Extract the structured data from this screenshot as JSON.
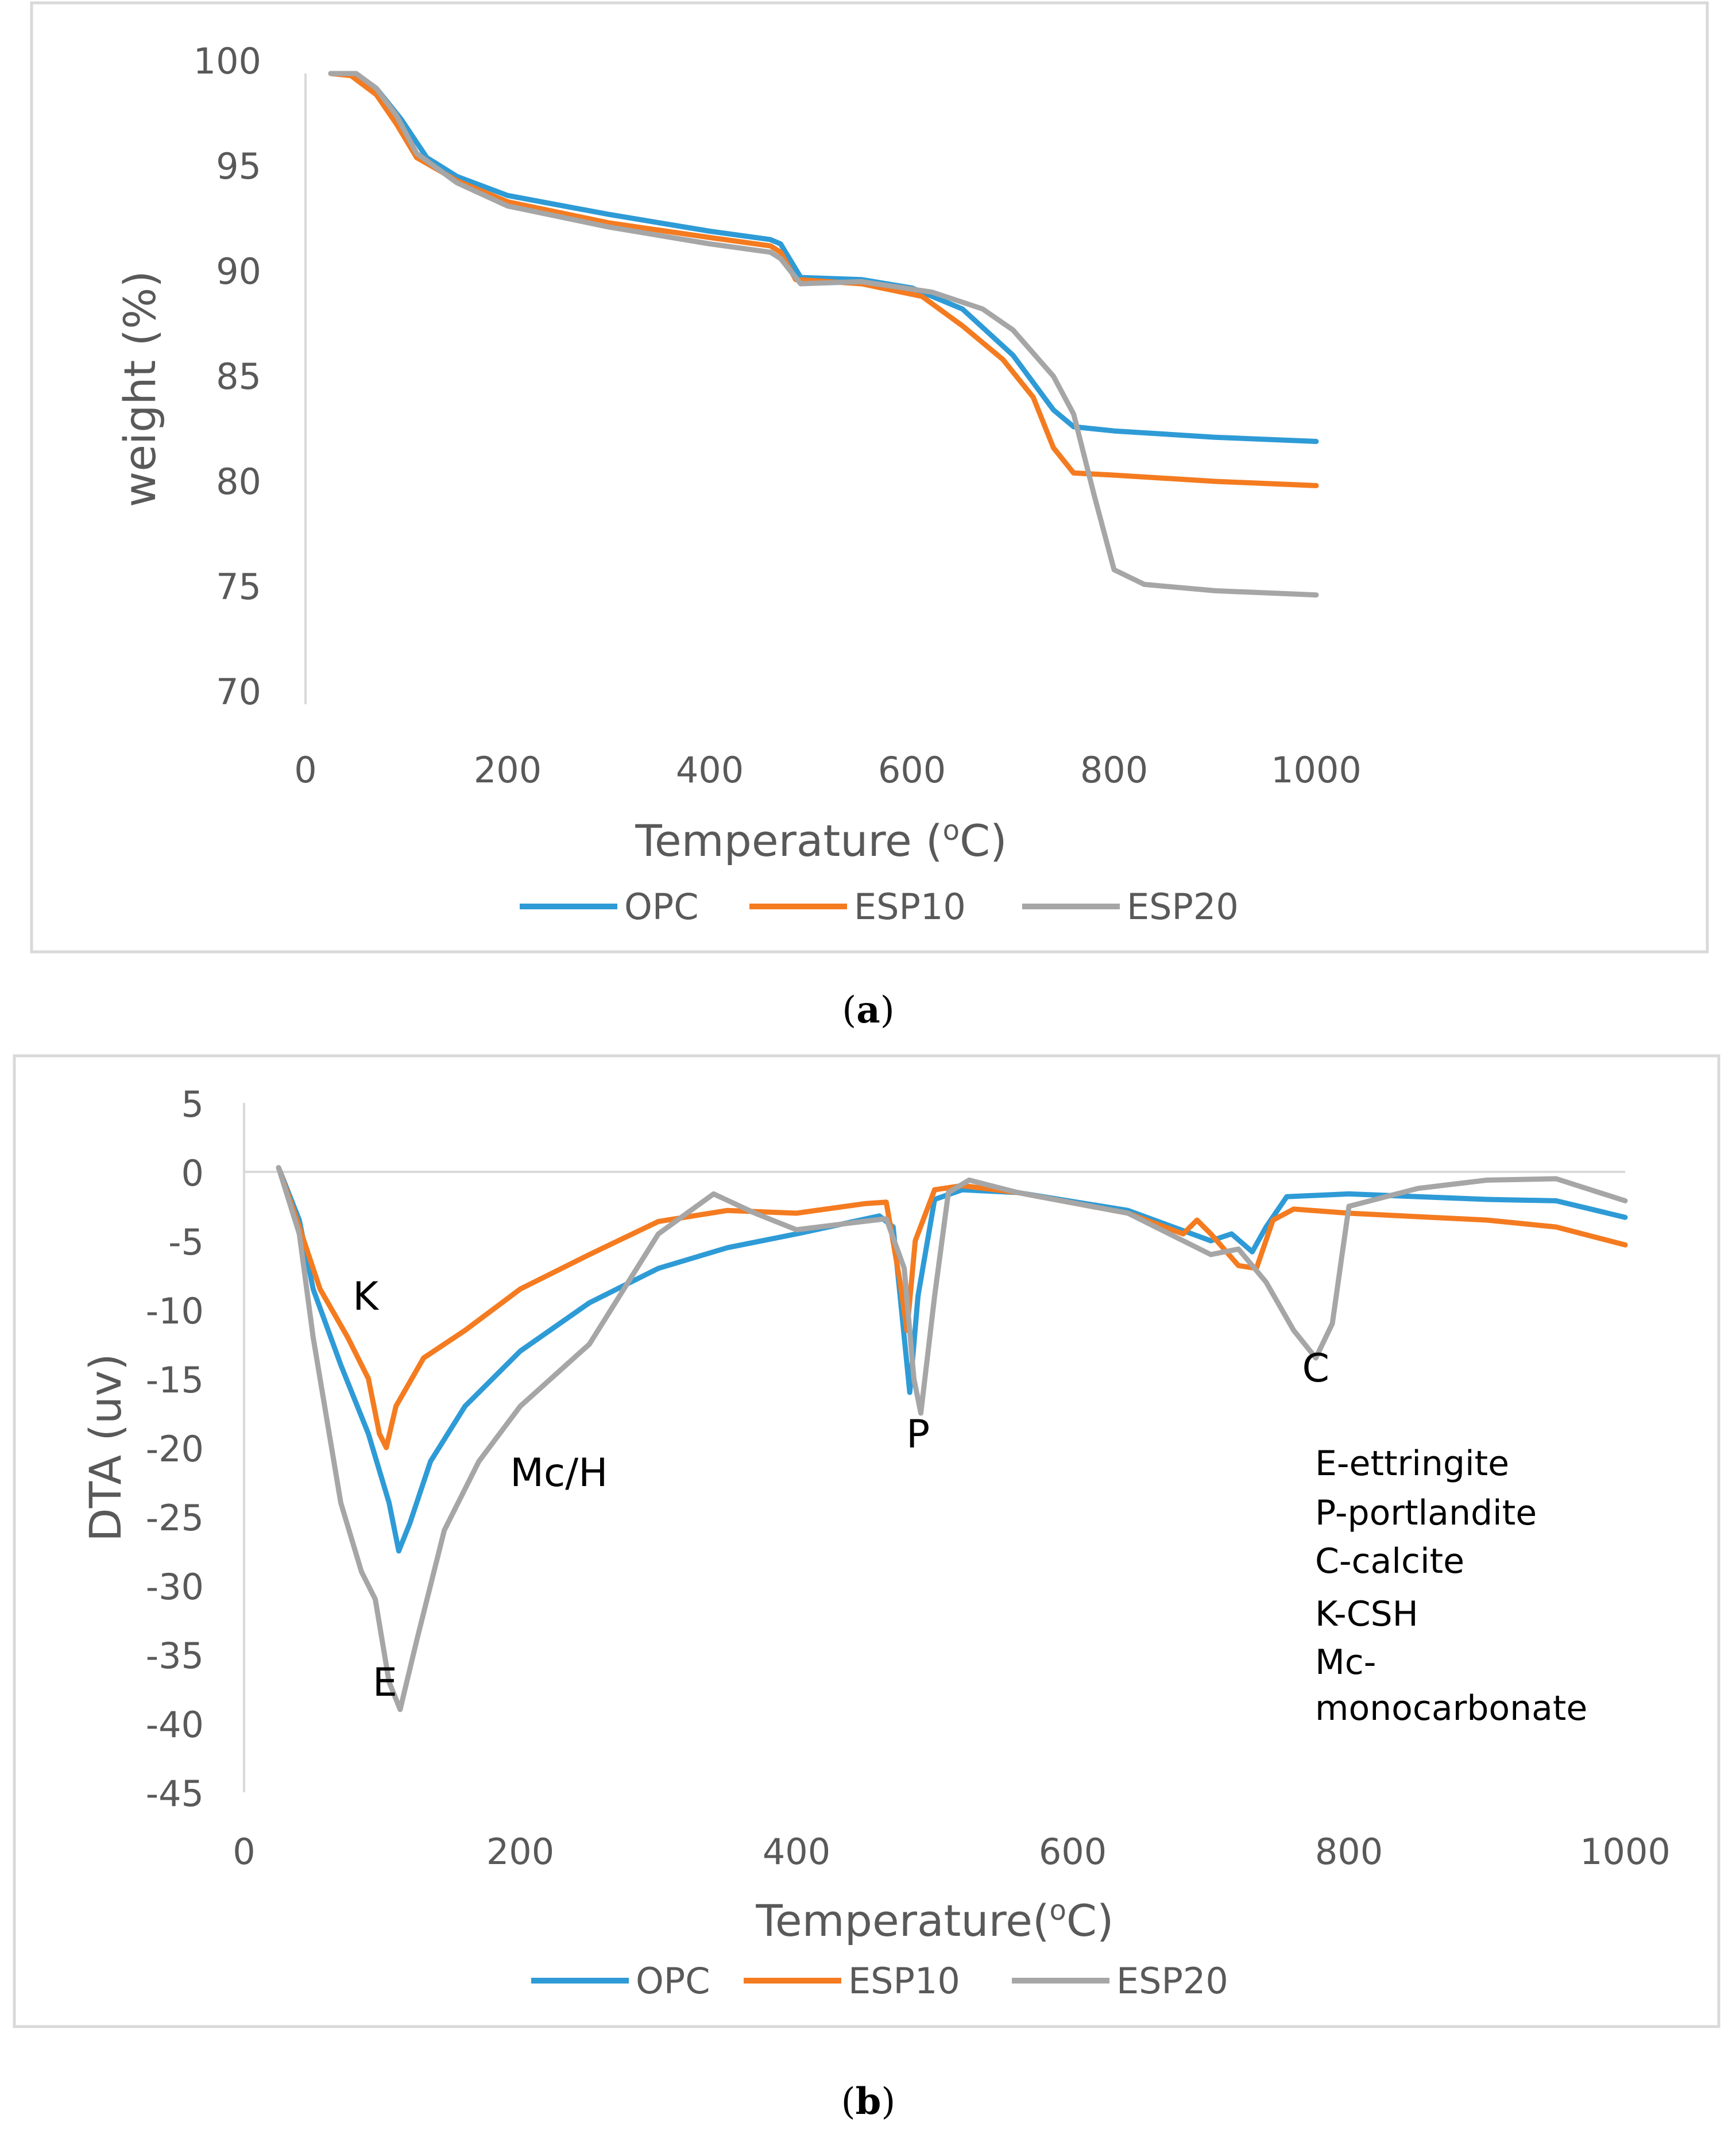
{
  "colors": {
    "OPC": "#2e9bd6",
    "ESP10": "#f47b20",
    "ESP20": "#a6a6a6",
    "axis": "#d9d9d9",
    "text": "#595959"
  },
  "chart_data": [
    {
      "id": "a",
      "type": "line",
      "caption_open": "(",
      "caption_letter": "a",
      "caption_close": ")",
      "xlabel_main": "Temperature (",
      "xlabel_sup": "o",
      "xlabel_end": "C)",
      "ylabel": "weight (%)",
      "xlim": [
        0,
        1000
      ],
      "ylim": [
        70,
        100
      ],
      "xticks": [
        "0",
        "200",
        "400",
        "600",
        "800",
        "1000"
      ],
      "yticks": [
        "70",
        "75",
        "80",
        "85",
        "90",
        "95",
        "100"
      ],
      "legend": [
        "OPC",
        "ESP10",
        "ESP20"
      ],
      "series": [
        {
          "name": "OPC",
          "points": [
            [
              25,
              100
            ],
            [
              50,
              100
            ],
            [
              70,
              99.3
            ],
            [
              95,
              97.8
            ],
            [
              120,
              96.0
            ],
            [
              150,
              95.1
            ],
            [
              200,
              94.2
            ],
            [
              300,
              93.3
            ],
            [
              400,
              92.5
            ],
            [
              460,
              92.1
            ],
            [
              470,
              91.9
            ],
            [
              490,
              90.3
            ],
            [
              550,
              90.2
            ],
            [
              600,
              89.8
            ],
            [
              650,
              88.8
            ],
            [
              700,
              86.6
            ],
            [
              740,
              84.0
            ],
            [
              760,
              83.2
            ],
            [
              800,
              83.0
            ],
            [
              900,
              82.7
            ],
            [
              1000,
              82.5
            ]
          ]
        },
        {
          "name": "ESP10",
          "points": [
            [
              25,
              100
            ],
            [
              45,
              99.9
            ],
            [
              70,
              99.0
            ],
            [
              90,
              97.6
            ],
            [
              110,
              96.0
            ],
            [
              150,
              94.9
            ],
            [
              200,
              93.9
            ],
            [
              300,
              92.9
            ],
            [
              400,
              92.2
            ],
            [
              460,
              91.8
            ],
            [
              470,
              91.5
            ],
            [
              485,
              90.2
            ],
            [
              550,
              90.0
            ],
            [
              610,
              89.4
            ],
            [
              650,
              88.0
            ],
            [
              690,
              86.4
            ],
            [
              720,
              84.6
            ],
            [
              740,
              82.2
            ],
            [
              760,
              81.0
            ],
            [
              800,
              80.9
            ],
            [
              900,
              80.6
            ],
            [
              1000,
              80.4
            ]
          ]
        },
        {
          "name": "ESP20",
          "points": [
            [
              25,
              100
            ],
            [
              50,
              100
            ],
            [
              70,
              99.3
            ],
            [
              90,
              98.0
            ],
            [
              110,
              96.2
            ],
            [
              150,
              94.8
            ],
            [
              200,
              93.7
            ],
            [
              300,
              92.7
            ],
            [
              400,
              91.9
            ],
            [
              460,
              91.5
            ],
            [
              470,
              91.2
            ],
            [
              490,
              90.0
            ],
            [
              550,
              90.1
            ],
            [
              620,
              89.6
            ],
            [
              670,
              88.8
            ],
            [
              700,
              87.8
            ],
            [
              740,
              85.6
            ],
            [
              760,
              83.8
            ],
            [
              780,
              80.0
            ],
            [
              800,
              76.4
            ],
            [
              830,
              75.7
            ],
            [
              900,
              75.4
            ],
            [
              1000,
              75.2
            ]
          ]
        }
      ]
    },
    {
      "id": "b",
      "type": "line",
      "caption_open": "(",
      "caption_letter": "b",
      "caption_close": ")",
      "xlabel_main": "Temperature(",
      "xlabel_sup": "o",
      "xlabel_end": "C)",
      "ylabel": "DTA (uv)",
      "xlim": [
        0,
        1000
      ],
      "ylim": [
        -45,
        5
      ],
      "xticks": [
        "0",
        "200",
        "400",
        "600",
        "800",
        "1000"
      ],
      "yticks": [
        "-45",
        "-40",
        "-35",
        "-30",
        "-25",
        "-20",
        "-15",
        "-10",
        "-5",
        "0",
        "5"
      ],
      "legend": [
        "OPC",
        "ESP10",
        "ESP20"
      ],
      "annotations": [
        {
          "text": "K",
          "x": 88,
          "y": -10
        },
        {
          "text": "Mc/H",
          "x": 228,
          "y": -22.8
        },
        {
          "text": "E",
          "x": 102,
          "y": -38
        },
        {
          "text": "P",
          "x": 488,
          "y": -20
        },
        {
          "text": "C",
          "x": 776,
          "y": -15.2
        }
      ],
      "key_lines": [
        "E-ettringite",
        "P-portlandite",
        "C-calcite",
        "K-CSH",
        "Mc-",
        "monocarbonate"
      ],
      "series": [
        {
          "name": "OPC",
          "points": [
            [
              25,
              0.3
            ],
            [
              40,
              -3.5
            ],
            [
              50,
              -8.5
            ],
            [
              70,
              -14
            ],
            [
              90,
              -19
            ],
            [
              105,
              -24
            ],
            [
              112,
              -27.5
            ],
            [
              120,
              -25.5
            ],
            [
              135,
              -21
            ],
            [
              160,
              -17
            ],
            [
              200,
              -13
            ],
            [
              250,
              -9.5
            ],
            [
              300,
              -7
            ],
            [
              350,
              -5.5
            ],
            [
              400,
              -4.5
            ],
            [
              460,
              -3.2
            ],
            [
              470,
              -4
            ],
            [
              476,
              -10
            ],
            [
              482,
              -16
            ],
            [
              488,
              -9
            ],
            [
              500,
              -2
            ],
            [
              520,
              -1.3
            ],
            [
              560,
              -1.5
            ],
            [
              640,
              -2.8
            ],
            [
              700,
              -5
            ],
            [
              715,
              -4.5
            ],
            [
              730,
              -5.8
            ],
            [
              740,
              -4
            ],
            [
              755,
              -1.8
            ],
            [
              800,
              -1.6
            ],
            [
              900,
              -2
            ],
            [
              950,
              -2.1
            ],
            [
              1000,
              -3.3
            ]
          ]
        },
        {
          "name": "ESP10",
          "points": [
            [
              25,
              0.3
            ],
            [
              40,
              -4
            ],
            [
              55,
              -8.5
            ],
            [
              75,
              -12
            ],
            [
              90,
              -15
            ],
            [
              98,
              -19
            ],
            [
              103,
              -20
            ],
            [
              110,
              -17
            ],
            [
              130,
              -13.5
            ],
            [
              160,
              -11.5
            ],
            [
              200,
              -8.5
            ],
            [
              250,
              -6
            ],
            [
              300,
              -3.6
            ],
            [
              350,
              -2.8
            ],
            [
              400,
              -3
            ],
            [
              450,
              -2.3
            ],
            [
              465,
              -2.2
            ],
            [
              475,
              -8
            ],
            [
              480,
              -11.5
            ],
            [
              486,
              -5
            ],
            [
              500,
              -1.3
            ],
            [
              520,
              -1
            ],
            [
              560,
              -1.5
            ],
            [
              640,
              -3
            ],
            [
              680,
              -4.5
            ],
            [
              690,
              -3.5
            ],
            [
              700,
              -4.5
            ],
            [
              720,
              -6.8
            ],
            [
              733,
              -7
            ],
            [
              745,
              -3.5
            ],
            [
              760,
              -2.7
            ],
            [
              800,
              -3
            ],
            [
              900,
              -3.5
            ],
            [
              950,
              -4
            ],
            [
              1000,
              -5.3
            ]
          ]
        },
        {
          "name": "ESP20",
          "points": [
            [
              25,
              0.3
            ],
            [
              40,
              -4.5
            ],
            [
              50,
              -12
            ],
            [
              70,
              -24
            ],
            [
              85,
              -29
            ],
            [
              95,
              -31
            ],
            [
              105,
              -37
            ],
            [
              113,
              -39
            ],
            [
              125,
              -34
            ],
            [
              145,
              -26
            ],
            [
              170,
              -21
            ],
            [
              200,
              -17
            ],
            [
              250,
              -12.5
            ],
            [
              300,
              -4.5
            ],
            [
              340,
              -1.6
            ],
            [
              370,
              -3
            ],
            [
              400,
              -4.2
            ],
            [
              440,
              -3.7
            ],
            [
              465,
              -3.4
            ],
            [
              478,
              -7
            ],
            [
              485,
              -15
            ],
            [
              490,
              -17.5
            ],
            [
              500,
              -9
            ],
            [
              510,
              -1.5
            ],
            [
              525,
              -0.6
            ],
            [
              560,
              -1.5
            ],
            [
              640,
              -3
            ],
            [
              700,
              -6
            ],
            [
              720,
              -5.6
            ],
            [
              740,
              -8
            ],
            [
              760,
              -11.5
            ],
            [
              776,
              -13.5
            ],
            [
              788,
              -11
            ],
            [
              795,
              -6
            ],
            [
              800,
              -2.5
            ],
            [
              850,
              -1.2
            ],
            [
              900,
              -0.6
            ],
            [
              950,
              -0.5
            ],
            [
              1000,
              -2.1
            ]
          ]
        }
      ]
    }
  ]
}
